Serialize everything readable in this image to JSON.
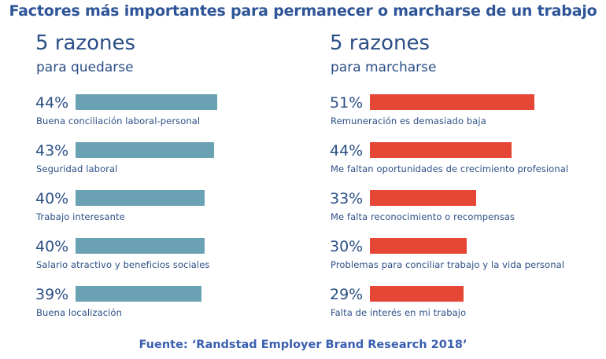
{
  "title": "Factores más importantes para permanecer o marcharse de un trabajo",
  "source": "Fuente: ‘Randstad Employer Brand Research 2018’",
  "colors": {
    "stay_bar": "#6aa2b3",
    "leave_bar": "#e54636",
    "text": "#2c4f86",
    "title": "#2e5597"
  },
  "chart_data": [
    {
      "type": "bar",
      "orientation": "horizontal",
      "title": "5 razones",
      "subtitle": "para quedarse",
      "unit": "%",
      "categories": [
        "Buena conciliación laboral-personal",
        "Seguridad laboral",
        "Trabajo interesante",
        "Salario atractivo y beneficios sociales",
        "Buena localización"
      ],
      "values": [
        44,
        43,
        40,
        40,
        39
      ],
      "value_labels": [
        "44%",
        "43%",
        "40%",
        "40%",
        "39%"
      ]
    },
    {
      "type": "bar",
      "orientation": "horizontal",
      "title": "5 razones",
      "subtitle": "para marcharse",
      "unit": "%",
      "categories": [
        "Remuneración es demasiado baja",
        "Me faltan oportunidades de crecimiento profesional",
        "Me falta reconocimiento o recompensas",
        "Problemas para conciliar trabajo y la vida personal",
        "Falta de interés en mi trabajo"
      ],
      "values": [
        51,
        44,
        33,
        30,
        29
      ],
      "value_labels": [
        "51%",
        "44%",
        "33%",
        "30%",
        "29%"
      ]
    }
  ]
}
